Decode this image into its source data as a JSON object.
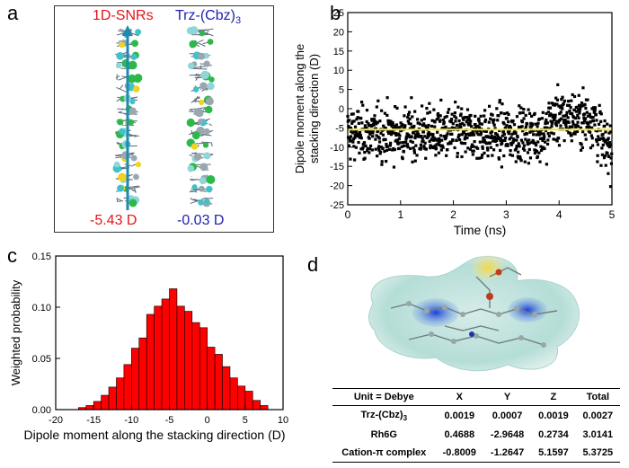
{
  "panel_a": {
    "label": "a",
    "left_title": "1D-SNRs",
    "right_title_main": "Trz-(Cbz)",
    "right_title_sub": "3",
    "left_value": "-5.43 D",
    "right_value": "-0.03 D",
    "colors": {
      "red": "#e4141b",
      "blue": "#1e22b4"
    }
  },
  "panel_b": {
    "label": "b",
    "chart_data": {
      "type": "scatter",
      "xlabel": "Time (ns)",
      "ylabel": "Dipole moment along the stacking direction (D)",
      "ylabel_lines": [
        "Dipole moment along the",
        "stacking direction (D)"
      ],
      "xlim": [
        0,
        5
      ],
      "ylim": [
        -25,
        25
      ],
      "xticks": [
        "0",
        "1",
        "2",
        "3",
        "4",
        "5"
      ],
      "yticks": [
        "-25",
        "-20",
        "-15",
        "-10",
        "-5",
        "0",
        "5",
        "10",
        "15",
        "20",
        "25"
      ],
      "mean_line": {
        "y": -5.43,
        "color": "#f4e742"
      },
      "point_count_note": "~1000 points, approximately 0-5 ns, mostly between -20 and 5 D, increasing near 4-4.6 ns",
      "marker_color": "#000000"
    }
  },
  "panel_c": {
    "label": "c",
    "chart_data": {
      "type": "bar",
      "xlabel": "Dipole moment along the stacking direction (D)",
      "ylabel": "Weighted probability",
      "xlim": [
        -20,
        10
      ],
      "ylim": [
        0,
        0.15
      ],
      "xticks": [
        "-20",
        "-15",
        "-10",
        "-5",
        "0",
        "5",
        "10"
      ],
      "yticks": [
        "0.00",
        "0.05",
        "0.10",
        "0.15"
      ],
      "bin_width": 1,
      "bin_start": -17,
      "values": [
        0.002,
        0.004,
        0.008,
        0.014,
        0.022,
        0.031,
        0.044,
        0.06,
        0.07,
        0.093,
        0.101,
        0.108,
        0.118,
        0.101,
        0.096,
        0.085,
        0.08,
        0.061,
        0.054,
        0.042,
        0.031,
        0.023,
        0.018,
        0.009,
        0.004
      ],
      "bar_color": "#ff0000"
    }
  },
  "panel_d": {
    "label": "d",
    "table": {
      "headers": [
        "Unit = Debye",
        "X",
        "Y",
        "Z",
        "Total"
      ],
      "rows": [
        {
          "name": "Trz-(Cbz)",
          "name_sub": "3",
          "x": "0.0019",
          "y": "0.0007",
          "z": "0.0019",
          "total": "0.0027"
        },
        {
          "name": "Rh6G",
          "name_sub": "",
          "x": "0.4688",
          "y": "-2.9648",
          "z": "0.2734",
          "total": "3.0141"
        },
        {
          "name": "Cation-π complex",
          "name_sub": "",
          "x": "-0.8009",
          "y": "-1.2647",
          "z": "5.1597",
          "total": "5.3725"
        }
      ]
    }
  }
}
